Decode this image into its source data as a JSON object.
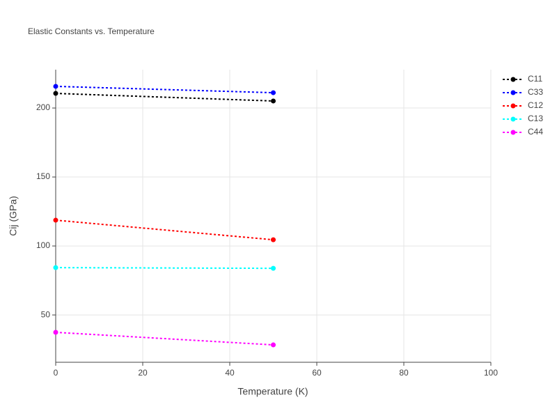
{
  "chart_data": {
    "type": "line",
    "title": "Elastic Constants vs. Temperature",
    "x_label": "Temperature (K)",
    "y_label": "Cij (GPa)",
    "x": [
      0,
      50
    ],
    "series": [
      {
        "name": "C11",
        "color": "#000000",
        "values": [
          210.6,
          205.1
        ]
      },
      {
        "name": "C33",
        "color": "#0000ff",
        "values": [
          215.7,
          211.1
        ]
      },
      {
        "name": "C12",
        "color": "#ff0000",
        "values": [
          118.7,
          104.5
        ]
      },
      {
        "name": "C13",
        "color": "#00ffff",
        "values": [
          84.3,
          83.8
        ]
      },
      {
        "name": "C44",
        "color": "#ff00ff",
        "values": [
          37.4,
          28.3
        ]
      }
    ],
    "xlim": [
      0,
      100
    ],
    "xticks": [
      0,
      20,
      40,
      60,
      80,
      100
    ],
    "ylim": [
      15.7,
      227.8
    ],
    "yticks": [
      50,
      100,
      150,
      200
    ],
    "grid": true,
    "legend": "top-right"
  }
}
